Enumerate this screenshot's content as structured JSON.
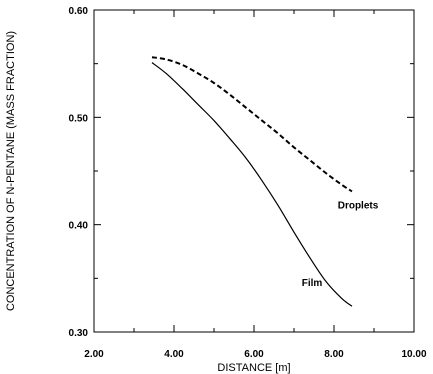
{
  "chart_data": {
    "type": "line",
    "title": "",
    "xlabel": "DISTANCE [m]",
    "ylabel": "CONCENTRATION OF N-PENTANE (MASS FRACTION)",
    "xlim": [
      2.0,
      10.0
    ],
    "ylim": [
      0.3,
      0.6
    ],
    "x_ticks": [
      "2.00",
      "4.00",
      "6.00",
      "8.00",
      "10.00"
    ],
    "y_ticks": [
      "0.30",
      "0.40",
      "0.50",
      "0.60"
    ],
    "grid": false,
    "legend": "none",
    "series": [
      {
        "name": "Droplets",
        "style": "dashed",
        "color": "#000000",
        "x": [
          3.45,
          3.8,
          4.2,
          4.6,
          5.0,
          5.4,
          5.8,
          6.2,
          6.6,
          7.0,
          7.4,
          7.8,
          8.2,
          8.45
        ],
        "y": [
          0.556,
          0.554,
          0.549,
          0.541,
          0.532,
          0.521,
          0.509,
          0.497,
          0.485,
          0.472,
          0.46,
          0.448,
          0.437,
          0.431
        ]
      },
      {
        "name": "Film",
        "style": "solid",
        "color": "#000000",
        "x": [
          3.45,
          3.8,
          4.2,
          4.6,
          5.0,
          5.4,
          5.8,
          6.2,
          6.6,
          7.0,
          7.4,
          7.8,
          8.2,
          8.45
        ],
        "y": [
          0.551,
          0.541,
          0.527,
          0.512,
          0.497,
          0.48,
          0.462,
          0.441,
          0.418,
          0.393,
          0.369,
          0.347,
          0.331,
          0.324
        ]
      }
    ],
    "annotations": [
      {
        "text": "Droplets",
        "x": 8.6,
        "y": 0.415
      },
      {
        "text": "Film",
        "x": 7.45,
        "y": 0.343
      }
    ]
  }
}
